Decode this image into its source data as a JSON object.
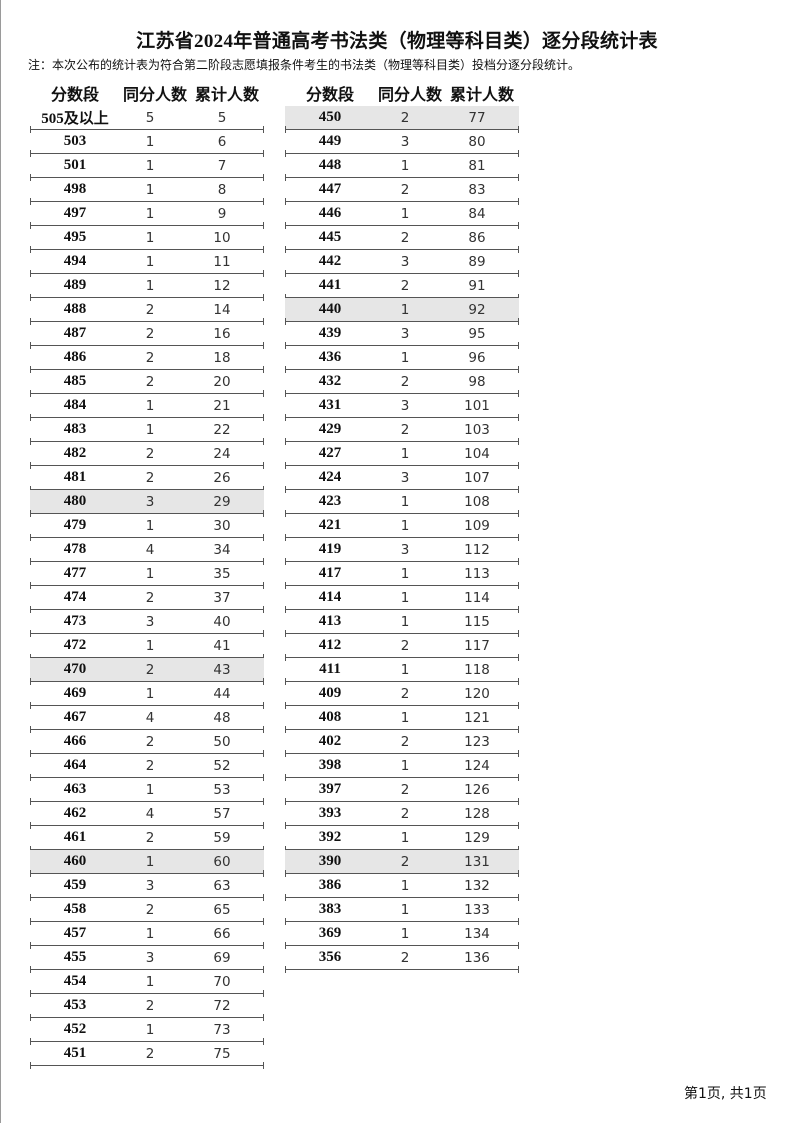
{
  "title": "江苏省2024年普通高考书法类（物理等科目类）逐分段统计表",
  "note": "注：本次公布的统计表为符合第二阶段志愿填报条件考生的书法类（物理等科目类）投档分逐分段统计。",
  "headers": [
    "分数段",
    "同分人数",
    "累计人数"
  ],
  "highlight_color": "#e6e6e6",
  "left_rows": [
    [
      "505及以上",
      "5",
      "5"
    ],
    [
      "503",
      "1",
      "6"
    ],
    [
      "501",
      "1",
      "7"
    ],
    [
      "498",
      "1",
      "8"
    ],
    [
      "497",
      "1",
      "9"
    ],
    [
      "495",
      "1",
      "10"
    ],
    [
      "494",
      "1",
      "11"
    ],
    [
      "489",
      "1",
      "12"
    ],
    [
      "488",
      "2",
      "14"
    ],
    [
      "487",
      "2",
      "16"
    ],
    [
      "486",
      "2",
      "18"
    ],
    [
      "485",
      "2",
      "20"
    ],
    [
      "484",
      "1",
      "21"
    ],
    [
      "483",
      "1",
      "22"
    ],
    [
      "482",
      "2",
      "24"
    ],
    [
      "481",
      "2",
      "26"
    ],
    [
      "480",
      "3",
      "29"
    ],
    [
      "479",
      "1",
      "30"
    ],
    [
      "478",
      "4",
      "34"
    ],
    [
      "477",
      "1",
      "35"
    ],
    [
      "474",
      "2",
      "37"
    ],
    [
      "473",
      "3",
      "40"
    ],
    [
      "472",
      "1",
      "41"
    ],
    [
      "470",
      "2",
      "43"
    ],
    [
      "469",
      "1",
      "44"
    ],
    [
      "467",
      "4",
      "48"
    ],
    [
      "466",
      "2",
      "50"
    ],
    [
      "464",
      "2",
      "52"
    ],
    [
      "463",
      "1",
      "53"
    ],
    [
      "462",
      "4",
      "57"
    ],
    [
      "461",
      "2",
      "59"
    ],
    [
      "460",
      "1",
      "60"
    ],
    [
      "459",
      "3",
      "63"
    ],
    [
      "458",
      "2",
      "65"
    ],
    [
      "457",
      "1",
      "66"
    ],
    [
      "455",
      "3",
      "69"
    ],
    [
      "454",
      "1",
      "70"
    ],
    [
      "453",
      "2",
      "72"
    ],
    [
      "452",
      "1",
      "73"
    ],
    [
      "451",
      "2",
      "75"
    ]
  ],
  "left_highlighted": [
    "480",
    "470",
    "460"
  ],
  "right_rows": [
    [
      "450",
      "2",
      "77"
    ],
    [
      "449",
      "3",
      "80"
    ],
    [
      "448",
      "1",
      "81"
    ],
    [
      "447",
      "2",
      "83"
    ],
    [
      "446",
      "1",
      "84"
    ],
    [
      "445",
      "2",
      "86"
    ],
    [
      "442",
      "3",
      "89"
    ],
    [
      "441",
      "2",
      "91"
    ],
    [
      "440",
      "1",
      "92"
    ],
    [
      "439",
      "3",
      "95"
    ],
    [
      "436",
      "1",
      "96"
    ],
    [
      "432",
      "2",
      "98"
    ],
    [
      "431",
      "3",
      "101"
    ],
    [
      "429",
      "2",
      "103"
    ],
    [
      "427",
      "1",
      "104"
    ],
    [
      "424",
      "3",
      "107"
    ],
    [
      "423",
      "1",
      "108"
    ],
    [
      "421",
      "1",
      "109"
    ],
    [
      "419",
      "3",
      "112"
    ],
    [
      "417",
      "1",
      "113"
    ],
    [
      "414",
      "1",
      "114"
    ],
    [
      "413",
      "1",
      "115"
    ],
    [
      "412",
      "2",
      "117"
    ],
    [
      "411",
      "1",
      "118"
    ],
    [
      "409",
      "2",
      "120"
    ],
    [
      "408",
      "1",
      "121"
    ],
    [
      "402",
      "2",
      "123"
    ],
    [
      "398",
      "1",
      "124"
    ],
    [
      "397",
      "2",
      "126"
    ],
    [
      "393",
      "2",
      "128"
    ],
    [
      "392",
      "1",
      "129"
    ],
    [
      "390",
      "2",
      "131"
    ],
    [
      "386",
      "1",
      "132"
    ],
    [
      "383",
      "1",
      "133"
    ],
    [
      "369",
      "1",
      "134"
    ],
    [
      "356",
      "2",
      "136"
    ]
  ],
  "right_highlighted": [
    "450",
    "440",
    "390"
  ],
  "footer": "第1页, 共1页"
}
